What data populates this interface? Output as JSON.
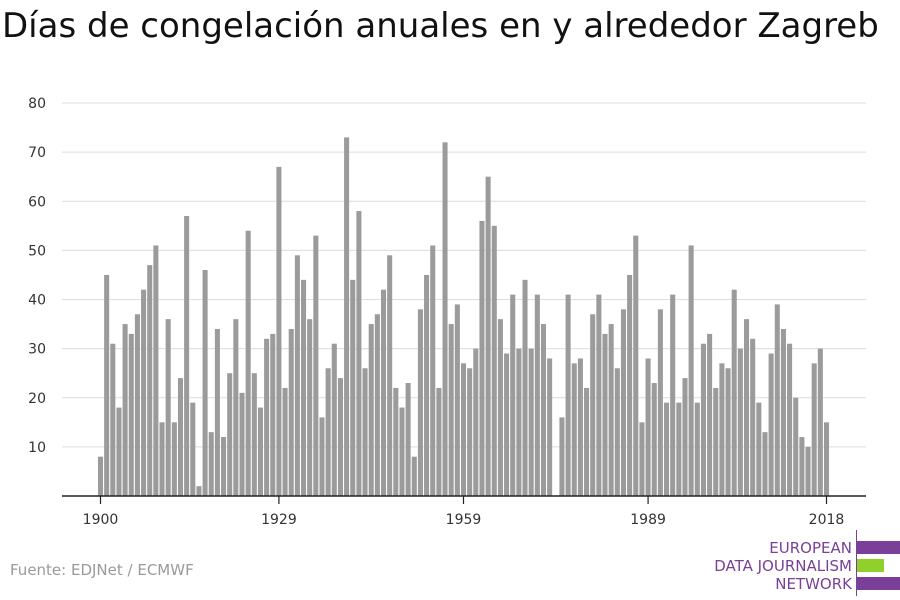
{
  "chart_data": {
    "type": "bar",
    "title": "Días de congelación anuales en y alrededor Zagreb",
    "xlabel": "",
    "ylabel": "",
    "ylim": [
      0,
      80
    ],
    "yticks": [
      10,
      20,
      30,
      40,
      50,
      60,
      70,
      80
    ],
    "xticks": [
      1900,
      1929,
      1959,
      1989,
      2018
    ],
    "x": [
      1900,
      1901,
      1902,
      1903,
      1904,
      1905,
      1906,
      1907,
      1908,
      1909,
      1910,
      1911,
      1912,
      1913,
      1914,
      1915,
      1916,
      1917,
      1918,
      1919,
      1920,
      1921,
      1922,
      1923,
      1924,
      1925,
      1926,
      1927,
      1928,
      1929,
      1930,
      1931,
      1932,
      1933,
      1934,
      1935,
      1936,
      1937,
      1938,
      1939,
      1940,
      1941,
      1942,
      1943,
      1944,
      1945,
      1946,
      1947,
      1948,
      1949,
      1950,
      1951,
      1952,
      1953,
      1954,
      1955,
      1956,
      1957,
      1958,
      1959,
      1960,
      1961,
      1962,
      1963,
      1964,
      1965,
      1966,
      1967,
      1968,
      1969,
      1970,
      1971,
      1972,
      1973,
      1974,
      1975,
      1976,
      1977,
      1978,
      1979,
      1980,
      1981,
      1982,
      1983,
      1984,
      1985,
      1986,
      1987,
      1988,
      1989,
      1990,
      1991,
      1992,
      1993,
      1994,
      1995,
      1996,
      1997,
      1998,
      1999,
      2000,
      2001,
      2002,
      2003,
      2004,
      2005,
      2006,
      2007,
      2008,
      2009,
      2010,
      2011,
      2012,
      2013,
      2014,
      2015,
      2016,
      2017,
      2018
    ],
    "values": [
      8,
      45,
      31,
      18,
      35,
      33,
      37,
      42,
      47,
      51,
      15,
      36,
      15,
      24,
      57,
      19,
      2,
      46,
      13,
      34,
      12,
      25,
      36,
      21,
      54,
      25,
      18,
      32,
      33,
      67,
      22,
      34,
      49,
      44,
      36,
      53,
      16,
      26,
      31,
      24,
      73,
      44,
      58,
      26,
      35,
      37,
      42,
      49,
      22,
      18,
      23,
      8,
      38,
      45,
      51,
      22,
      72,
      35,
      39,
      27,
      26,
      30,
      56,
      65,
      55,
      36,
      29,
      41,
      30,
      44,
      30,
      41,
      35,
      28,
      0,
      16,
      41,
      27,
      28,
      22,
      37,
      41,
      33,
      35,
      26,
      38,
      45,
      53,
      15,
      28,
      23,
      38,
      19,
      41,
      19,
      24,
      51,
      19,
      31,
      33,
      22,
      27,
      26,
      42,
      30,
      36,
      32,
      19,
      13,
      29,
      39,
      34,
      31,
      20,
      12,
      10,
      27,
      30,
      15
    ],
    "color": "#9b9b9b",
    "grid": true,
    "legend": "none"
  },
  "source": "Fuente: EDJNet / ECMWF",
  "logo": {
    "line1": "EUROPEAN",
    "line2": "DATA JOURNALISM",
    "line3": "NETWORK",
    "purple": "#7a3f98",
    "green": "#8fd02a"
  }
}
